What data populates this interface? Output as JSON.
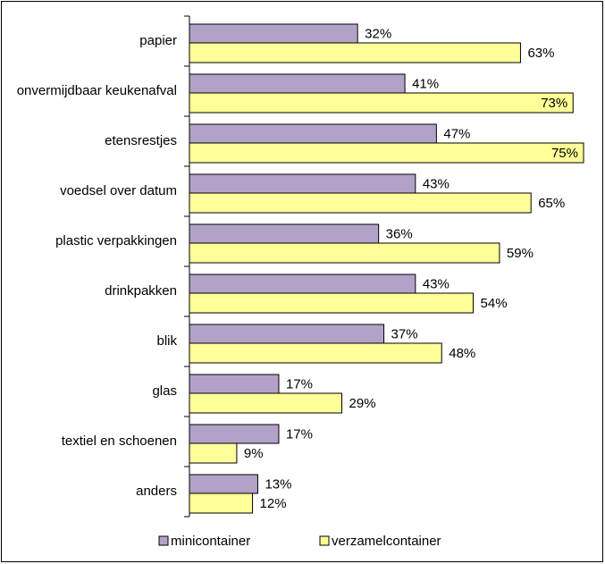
{
  "chart_data": {
    "type": "bar",
    "orientation": "horizontal",
    "categories": [
      "papier",
      "onvermijdbaar keukenafval",
      "etensrestjes",
      "voedsel over datum",
      "plastic verpakkingen",
      "drinkpakken",
      "blik",
      "glas",
      "textiel en schoenen",
      "anders"
    ],
    "series": [
      {
        "name": "minicontainer",
        "color": "#b3a2c7",
        "values": [
          32,
          41,
          47,
          43,
          36,
          43,
          37,
          17,
          17,
          13
        ],
        "value_labels": [
          "32%",
          "41%",
          "47%",
          "43%",
          "36%",
          "43%",
          "37%",
          "17%",
          "17%",
          "13%"
        ]
      },
      {
        "name": "verzamelcontainer",
        "color": "#ffff99",
        "values": [
          63,
          73,
          75,
          65,
          59,
          54,
          48,
          29,
          9,
          12
        ],
        "value_labels": [
          "63%",
          "73%",
          "75%",
          "65%",
          "59%",
          "54%",
          "48%",
          "29%",
          "9%",
          "12%"
        ]
      }
    ],
    "legend": "bottom"
  }
}
